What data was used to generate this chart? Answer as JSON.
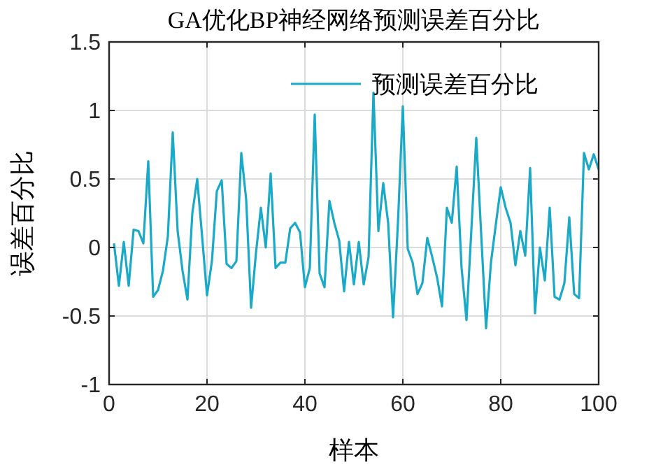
{
  "chart_data": {
    "type": "line",
    "title": "GA优化BP神经网络预测误差百分比",
    "xlabel": "样本",
    "ylabel": "误差百分比",
    "x": [
      1,
      2,
      3,
      4,
      5,
      6,
      7,
      8,
      9,
      10,
      11,
      12,
      13,
      14,
      15,
      16,
      17,
      18,
      19,
      20,
      21,
      22,
      23,
      24,
      25,
      26,
      27,
      28,
      29,
      30,
      31,
      32,
      33,
      34,
      35,
      36,
      37,
      38,
      39,
      40,
      41,
      42,
      43,
      44,
      45,
      46,
      47,
      48,
      49,
      50,
      51,
      52,
      53,
      54,
      55,
      56,
      57,
      58,
      59,
      60,
      61,
      62,
      63,
      64,
      65,
      66,
      67,
      68,
      69,
      70,
      71,
      72,
      73,
      74,
      75,
      76,
      77,
      78,
      79,
      80,
      81,
      82,
      83,
      84,
      85,
      86,
      87,
      88,
      89,
      90,
      91,
      92,
      93,
      94,
      95,
      96,
      97,
      98,
      99,
      100
    ],
    "series": [
      {
        "name": "预测误差百分比",
        "color": "#1aa9c6",
        "values": [
          0.03,
          -0.28,
          0.04,
          -0.28,
          0.13,
          0.12,
          0.03,
          0.63,
          -0.36,
          -0.31,
          -0.17,
          0.08,
          0.84,
          0.12,
          -0.17,
          -0.38,
          0.25,
          0.5,
          0.08,
          -0.35,
          -0.1,
          0.41,
          0.49,
          -0.12,
          -0.15,
          -0.1,
          0.69,
          0.35,
          -0.44,
          -0.04,
          0.29,
          0,
          0.54,
          -0.15,
          -0.11,
          -0.11,
          0.14,
          0.18,
          0.11,
          -0.29,
          -0.15,
          0.97,
          -0.19,
          -0.29,
          0.34,
          0.18,
          0.05,
          -0.32,
          0.04,
          -0.27,
          0.04,
          -0.27,
          -0.07,
          1.13,
          0.12,
          0.47,
          0.18,
          -0.51,
          0.18,
          1.03,
          -0.01,
          -0.11,
          -0.34,
          -0.26,
          0.07,
          -0.07,
          -0.22,
          -0.43,
          0.29,
          0.18,
          0.59,
          -0.15,
          -0.53,
          0.13,
          0.8,
          0.1,
          -0.59,
          -0.11,
          0.17,
          0.44,
          0.29,
          0.18,
          -0.13,
          0.12,
          -0.06,
          0.58,
          -0.48,
          0,
          -0.24,
          0.29,
          -0.36,
          -0.38,
          -0.26,
          0.22,
          -0.34,
          -0.37,
          0.69,
          0.57,
          0.68,
          0.57
        ]
      }
    ],
    "xlim": [
      0,
      100
    ],
    "xticks": [
      0,
      20,
      40,
      60,
      80,
      100
    ],
    "ylim": [
      -1,
      1.5
    ],
    "yticks": [
      -1,
      -0.5,
      0,
      0.5,
      1,
      1.5
    ],
    "grid": true,
    "legend": "top right",
    "marker": "none",
    "line_style": "solid"
  }
}
